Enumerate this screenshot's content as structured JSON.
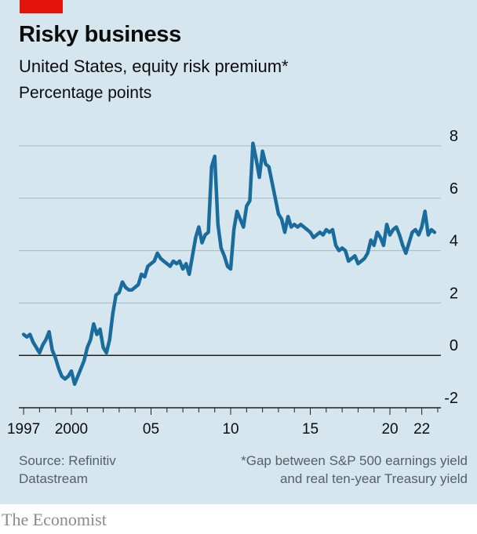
{
  "header": {
    "title": "Risky business",
    "subtitle": "United States, equity risk premium*",
    "unit": "Percentage points"
  },
  "footer": {
    "source_line1": "Source: Refinitiv",
    "source_line2": "Datastream",
    "note_line1": "*Gap between S&P 500 earnings yield",
    "note_line2": "and real ten-year Treasury yield"
  },
  "brand": "The Economist",
  "colors": {
    "panel": "#d6e6ef",
    "line": "#1a6c9c",
    "grid": "#a9b7c0",
    "zero": "#1f1f1f",
    "accent": "#e3120b"
  },
  "chart_data": {
    "type": "line",
    "title": "Risky business",
    "xlabel": "",
    "ylabel": "Percentage points",
    "xlim": [
      1996.7,
      2023.2
    ],
    "ylim": [
      -2,
      8
    ],
    "yticks": [
      8,
      6,
      4,
      2,
      0,
      -2
    ],
    "ytick_labels": [
      "8",
      "6",
      "4",
      "2",
      "0",
      "-2"
    ],
    "xticks": [
      1997,
      2000,
      2005,
      2010,
      2015,
      2020,
      2022
    ],
    "xtick_labels": [
      "1997",
      "2000",
      "05",
      "10",
      "15",
      "20",
      "22"
    ],
    "series": [
      {
        "name": "Equity risk premium",
        "x": [
          1997.0,
          1997.2,
          1997.4,
          1997.6,
          1997.8,
          1998.0,
          1998.2,
          1998.4,
          1998.6,
          1998.8,
          1999.0,
          1999.2,
          1999.4,
          1999.6,
          1999.8,
          2000.0,
          2000.2,
          2000.4,
          2000.6,
          2000.8,
          2001.0,
          2001.2,
          2001.4,
          2001.6,
          2001.8,
          2002.0,
          2002.2,
          2002.4,
          2002.6,
          2002.8,
          2003.0,
          2003.2,
          2003.4,
          2003.6,
          2003.8,
          2004.0,
          2004.2,
          2004.4,
          2004.6,
          2004.8,
          2005.0,
          2005.2,
          2005.4,
          2005.6,
          2005.8,
          2006.0,
          2006.2,
          2006.4,
          2006.6,
          2006.8,
          2007.0,
          2007.2,
          2007.4,
          2007.6,
          2007.8,
          2008.0,
          2008.2,
          2008.4,
          2008.6,
          2008.8,
          2009.0,
          2009.2,
          2009.4,
          2009.6,
          2009.8,
          2010.0,
          2010.2,
          2010.4,
          2010.6,
          2010.8,
          2011.0,
          2011.2,
          2011.4,
          2011.6,
          2011.8,
          2012.0,
          2012.2,
          2012.4,
          2012.6,
          2012.8,
          2013.0,
          2013.2,
          2013.4,
          2013.6,
          2013.8,
          2014.0,
          2014.2,
          2014.4,
          2014.6,
          2014.8,
          2015.0,
          2015.2,
          2015.4,
          2015.6,
          2015.8,
          2016.0,
          2016.2,
          2016.4,
          2016.6,
          2016.8,
          2017.0,
          2017.2,
          2017.4,
          2017.6,
          2017.8,
          2018.0,
          2018.2,
          2018.4,
          2018.6,
          2018.8,
          2019.0,
          2019.2,
          2019.4,
          2019.6,
          2019.8,
          2020.0,
          2020.2,
          2020.4,
          2020.6,
          2020.8,
          2021.0,
          2021.2,
          2021.4,
          2021.6,
          2021.8,
          2022.0,
          2022.2,
          2022.4,
          2022.6,
          2022.8
        ],
        "y": [
          0.8,
          0.7,
          0.8,
          0.5,
          0.3,
          0.1,
          0.4,
          0.6,
          0.9,
          0.2,
          -0.1,
          -0.5,
          -0.8,
          -0.9,
          -0.8,
          -0.6,
          -1.1,
          -0.8,
          -0.5,
          -0.2,
          0.3,
          0.6,
          1.2,
          0.8,
          1.0,
          0.3,
          0.1,
          0.6,
          1.6,
          2.3,
          2.4,
          2.8,
          2.6,
          2.5,
          2.5,
          2.6,
          2.7,
          3.1,
          3.0,
          3.4,
          3.5,
          3.6,
          3.9,
          3.7,
          3.6,
          3.5,
          3.4,
          3.6,
          3.5,
          3.6,
          3.3,
          3.5,
          3.1,
          3.8,
          4.5,
          4.9,
          4.3,
          4.6,
          4.7,
          7.2,
          7.6,
          5.0,
          4.1,
          3.8,
          3.4,
          3.3,
          4.8,
          5.5,
          5.2,
          4.9,
          5.7,
          5.9,
          8.1,
          7.5,
          6.8,
          7.8,
          7.3,
          7.2,
          6.6,
          6.0,
          5.4,
          5.2,
          4.7,
          5.3,
          4.9,
          5.0,
          4.9,
          5.0,
          4.9,
          4.8,
          4.7,
          4.5,
          4.6,
          4.7,
          4.6,
          4.8,
          4.7,
          4.8,
          4.2,
          4.0,
          4.1,
          4.0,
          3.6,
          3.7,
          3.8,
          3.5,
          3.6,
          3.7,
          3.9,
          4.4,
          4.2,
          4.7,
          4.5,
          4.2,
          5.0,
          4.6,
          4.8,
          4.9,
          4.6,
          4.2,
          3.9,
          4.3,
          4.7,
          4.8,
          4.6,
          4.9,
          5.5,
          4.6,
          4.8,
          4.7
        ]
      }
    ]
  }
}
